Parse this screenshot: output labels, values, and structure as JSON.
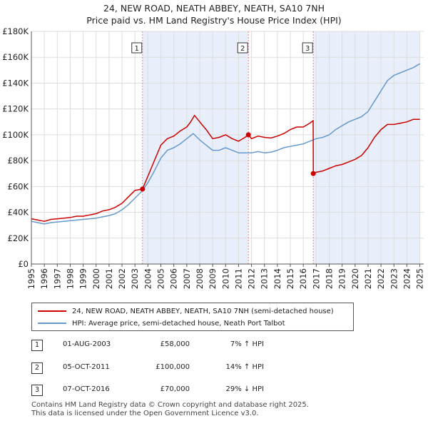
{
  "title_line1": "24, NEW ROAD, NEATH ABBEY, NEATH, SA10 7NH",
  "title_line2": "Price paid vs. HM Land Registry's House Price Index (HPI)",
  "colors": {
    "property": "#cc0000",
    "hpi": "#6699cc",
    "shade": "#e8eefa",
    "grid": "#dddddd",
    "vline": "#e88888"
  },
  "chart_data": {
    "type": "line",
    "x_range": [
      1995,
      2025.3
    ],
    "ylim": [
      0,
      180000
    ],
    "yticks": [
      0,
      20000,
      40000,
      60000,
      80000,
      100000,
      120000,
      140000,
      160000,
      180000
    ],
    "ytick_labels": [
      "£0",
      "£20K",
      "£40K",
      "£60K",
      "£80K",
      "£100K",
      "£120K",
      "£140K",
      "£160K",
      "£180K"
    ],
    "xticks": [
      1995,
      1996,
      1997,
      1998,
      1999,
      2000,
      2001,
      2002,
      2003,
      2004,
      2005,
      2006,
      2007,
      2008,
      2009,
      2010,
      2011,
      2012,
      2013,
      2014,
      2015,
      2016,
      2017,
      2018,
      2019,
      2020,
      2021,
      2022,
      2023,
      2024,
      2025
    ],
    "xtick_labels": [
      "1995",
      "1996",
      "1997",
      "1998",
      "1999",
      "2000",
      "2001",
      "2002",
      "2003",
      "2004",
      "2005",
      "2006",
      "2007",
      "2008",
      "2009",
      "2010",
      "2011",
      "2012",
      "2013",
      "2014",
      "2015",
      "2016",
      "2017",
      "2018",
      "2019",
      "2020",
      "2021",
      "2022",
      "2023",
      "2024",
      "2025"
    ],
    "shaded_ranges": [
      [
        2003.58,
        2011.76
      ],
      [
        2016.77,
        2025.0
      ]
    ],
    "series": [
      {
        "name": "24, NEW ROAD, NEATH ABBEY, NEATH, SA10 7NH (semi-detached house)",
        "color": "#cc0000",
        "x": [
          1995.0,
          1995.5,
          1996.0,
          1996.5,
          1997.0,
          1997.5,
          1998.0,
          1998.5,
          1999.0,
          1999.5,
          2000.0,
          2000.5,
          2001.0,
          2001.5,
          2002.0,
          2002.5,
          2003.0,
          2003.58,
          2004.0,
          2004.5,
          2005.0,
          2005.5,
          2006.0,
          2006.5,
          2007.0,
          2007.3,
          2007.6,
          2008.0,
          2008.5,
          2009.0,
          2009.5,
          2010.0,
          2010.5,
          2011.0,
          2011.5,
          2011.76,
          2012.0,
          2012.5,
          2013.0,
          2013.5,
          2014.0,
          2014.5,
          2015.0,
          2015.5,
          2016.0,
          2016.5,
          2016.76,
          2016.77,
          2017.0,
          2017.5,
          2018.0,
          2018.5,
          2019.0,
          2019.5,
          2020.0,
          2020.5,
          2021.0,
          2021.5,
          2022.0,
          2022.5,
          2023.0,
          2023.5,
          2024.0,
          2024.5,
          2025.0
        ],
        "values": [
          35000,
          34000,
          33000,
          34500,
          35000,
          35500,
          36000,
          37000,
          37000,
          38000,
          39000,
          41000,
          42000,
          44000,
          47000,
          52000,
          57000,
          58000,
          68000,
          80000,
          92000,
          97000,
          99000,
          103000,
          106000,
          110000,
          115000,
          110000,
          104000,
          97000,
          98000,
          100000,
          97000,
          95000,
          98000,
          100000,
          97000,
          99000,
          98000,
          97500,
          99000,
          101000,
          104000,
          106000,
          106000,
          109000,
          111000,
          70000,
          71000,
          72000,
          74000,
          76000,
          77000,
          79000,
          81000,
          84000,
          90000,
          98000,
          104000,
          108000,
          108000,
          109000,
          110000,
          112000,
          112000
        ]
      },
      {
        "name": "HPI: Average price, semi-detached house, Neath Port Talbot",
        "color": "#6699cc",
        "x": [
          1995.0,
          1995.5,
          1996.0,
          1996.5,
          1997.0,
          1997.5,
          1998.0,
          1998.5,
          1999.0,
          1999.5,
          2000.0,
          2000.5,
          2001.0,
          2001.5,
          2002.0,
          2002.5,
          2003.0,
          2003.5,
          2004.0,
          2004.5,
          2005.0,
          2005.5,
          2006.0,
          2006.5,
          2007.0,
          2007.5,
          2008.0,
          2008.5,
          2009.0,
          2009.5,
          2010.0,
          2010.5,
          2011.0,
          2011.5,
          2012.0,
          2012.5,
          2013.0,
          2013.5,
          2014.0,
          2014.5,
          2015.0,
          2015.5,
          2016.0,
          2016.5,
          2017.0,
          2017.5,
          2018.0,
          2018.5,
          2019.0,
          2019.5,
          2020.0,
          2020.5,
          2021.0,
          2021.5,
          2022.0,
          2022.5,
          2023.0,
          2023.5,
          2024.0,
          2024.5,
          2025.0
        ],
        "values": [
          33000,
          32000,
          31000,
          32000,
          32500,
          33000,
          33500,
          34000,
          34500,
          35000,
          35500,
          36500,
          37500,
          39000,
          42000,
          46000,
          51000,
          56000,
          63000,
          72000,
          82000,
          88000,
          90000,
          93000,
          97000,
          101000,
          96000,
          92000,
          88000,
          88000,
          90000,
          88000,
          86000,
          86000,
          86000,
          87000,
          86000,
          86500,
          88000,
          90000,
          91000,
          92000,
          93000,
          95000,
          97000,
          98000,
          100000,
          104000,
          107000,
          110000,
          112000,
          114000,
          118000,
          126000,
          134000,
          142000,
          146000,
          148000,
          150000,
          152000,
          155000
        ]
      }
    ],
    "sales": [
      {
        "label": "1",
        "x": 2003.58,
        "y": 58000
      },
      {
        "label": "2",
        "x": 2011.76,
        "y": 100000
      },
      {
        "label": "3",
        "x": 2016.77,
        "y": 70000
      }
    ]
  },
  "legend": {
    "property_label": "24, NEW ROAD, NEATH ABBEY, NEATH, SA10 7NH (semi-detached house)",
    "hpi_label": "HPI: Average price, semi-detached house, Neath Port Talbot"
  },
  "transactions": [
    {
      "num": "1",
      "date": "01-AUG-2003",
      "price": "£58,000",
      "change": "7% ↑ HPI"
    },
    {
      "num": "2",
      "date": "05-OCT-2011",
      "price": "£100,000",
      "change": "14% ↑ HPI"
    },
    {
      "num": "3",
      "date": "07-OCT-2016",
      "price": "£70,000",
      "change": "29% ↓ HPI"
    }
  ],
  "footer": {
    "line1": "Contains HM Land Registry data © Crown copyright and database right 2025.",
    "line2": "This data is licensed under the Open Government Licence v3.0."
  }
}
